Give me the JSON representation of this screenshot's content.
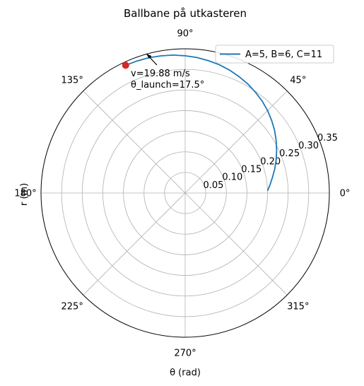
{
  "chart_data": {
    "type": "polar-line",
    "title": "Ballbane på utkasteren",
    "xlabel": "θ (rad)",
    "ylabel": "r (m)",
    "rlim": [
      0,
      0.35
    ],
    "r_ticks": [
      0.05,
      0.1,
      0.15,
      0.2,
      0.25,
      0.3,
      0.35
    ],
    "r_tick_labels": [
      "0.05",
      "0.10",
      "0.15",
      "0.20",
      "0.25",
      "0.30",
      "0.35"
    ],
    "theta_ticks_deg": [
      0,
      45,
      90,
      135,
      180,
      225,
      270,
      315
    ],
    "theta_tick_labels": [
      "0°",
      "45°",
      "90°",
      "135°",
      "180°",
      "225°",
      "270°",
      "315°"
    ],
    "grid": true,
    "legend_position": "top-right",
    "series": [
      {
        "name": "A=5, B=6, C=11",
        "color": "#1f77b4",
        "theta_deg": [
          1.5,
          5,
          10,
          15,
          20,
          25,
          30,
          35,
          40,
          45,
          50,
          55,
          60,
          65,
          70,
          75,
          80,
          85,
          90,
          95,
          100,
          105,
          110,
          115
        ],
        "r": [
          0.2,
          0.206,
          0.215,
          0.225,
          0.235,
          0.245,
          0.255,
          0.265,
          0.274,
          0.283,
          0.291,
          0.298,
          0.305,
          0.311,
          0.317,
          0.322,
          0.326,
          0.33,
          0.333,
          0.336,
          0.338,
          0.34,
          0.341,
          0.342
        ]
      }
    ],
    "marker": {
      "theta_deg": 115,
      "r": 0.342,
      "color": "#d62728"
    },
    "annotation": {
      "lines": [
        "v=19.88 m/s",
        "θ_launch=17.5°"
      ]
    }
  }
}
